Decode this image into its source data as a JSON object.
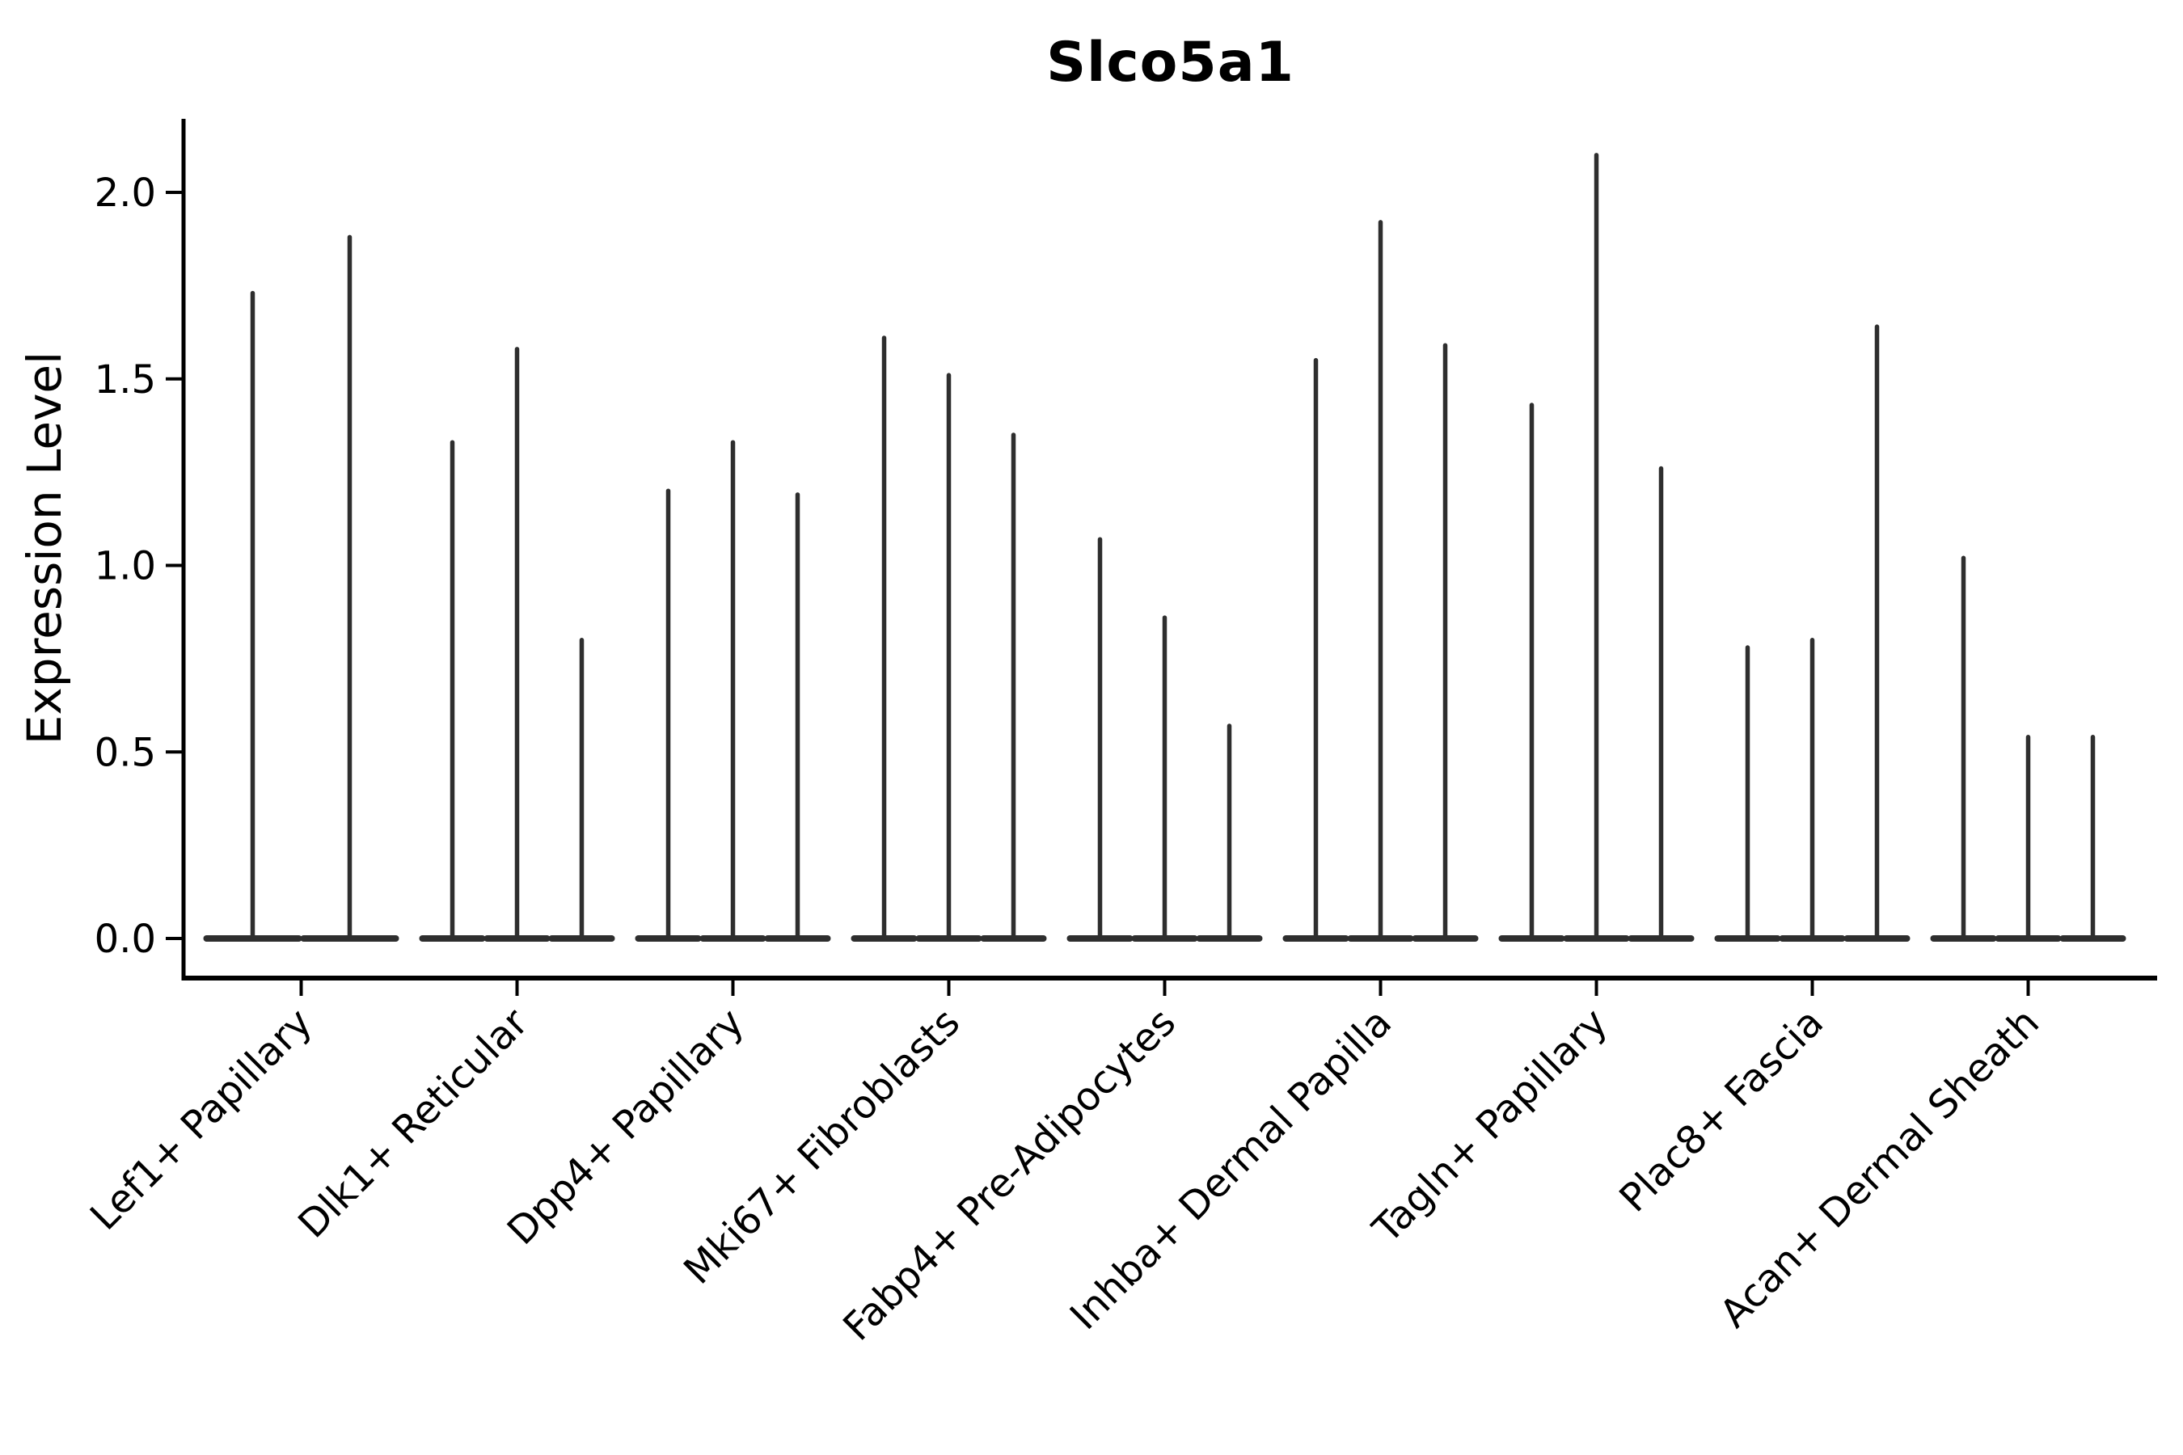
{
  "title": "Slco5a1",
  "chart_data": {
    "type": "violin",
    "title": "Slco5a1",
    "xlabel": "",
    "ylabel": "Expression Level",
    "yticks": [
      0.0,
      0.5,
      1.0,
      1.5,
      2.0
    ],
    "ylim": [
      -0.11,
      2.2
    ],
    "grid": false,
    "legend": "none",
    "orientation": "vertical",
    "note": "Each category contains multiple ultra-thin violins: density is concentrated at 0 (flat base bar) with a thin spike rising to the maximum expression value.",
    "categories": [
      "Lef1+ Papillary",
      "Dlk1+ Reticular",
      "Dpp4+ Papillary",
      "Mki67+ Fibroblasts",
      "Fabp4+ Pre-Adipocytes",
      "Inhba+ Dermal Papilla",
      "Tagln+ Papillary",
      "Plac8+ Fascia",
      "Acan+ Dermal Sheath"
    ],
    "groups": [
      {
        "category": "Lef1+ Papillary",
        "violin_max_values": [
          1.73,
          1.88
        ]
      },
      {
        "category": "Dlk1+ Reticular",
        "violin_max_values": [
          1.33,
          1.58,
          0.8
        ]
      },
      {
        "category": "Dpp4+ Papillary",
        "violin_max_values": [
          1.2,
          1.33,
          1.19
        ]
      },
      {
        "category": "Mki67+ Fibroblasts",
        "violin_max_values": [
          1.61,
          1.51,
          1.35
        ]
      },
      {
        "category": "Fabp4+ Pre-Adipocytes",
        "violin_max_values": [
          1.07,
          0.86,
          0.57
        ]
      },
      {
        "category": "Inhba+ Dermal Papilla",
        "violin_max_values": [
          1.55,
          1.92,
          1.59
        ]
      },
      {
        "category": "Tagln+ Papillary",
        "violin_max_values": [
          1.43,
          2.1,
          1.26
        ]
      },
      {
        "category": "Plac8+ Fascia",
        "violin_max_values": [
          0.78,
          0.8,
          1.64
        ]
      },
      {
        "category": "Acan+ Dermal Sheath",
        "violin_max_values": [
          1.02,
          0.54,
          0.54
        ]
      }
    ],
    "colors": {
      "violin": "#2e2e2e",
      "axis": "#000000",
      "background": "#ffffff"
    }
  }
}
